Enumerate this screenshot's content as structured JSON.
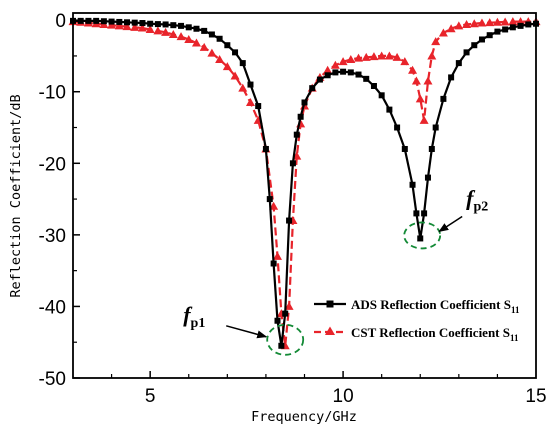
{
  "chart_data": {
    "type": "line",
    "title": "",
    "xlabel": "Frequency/GHz",
    "ylabel": "Reflection Coefficient/dB",
    "xlim": [
      3,
      15
    ],
    "ylim": [
      -50,
      1
    ],
    "xticks": [
      5,
      10,
      15
    ],
    "yticks": [
      0,
      -10,
      -20,
      -30,
      -40,
      -50
    ],
    "grid": false,
    "legend_position": "lower-right",
    "series": [
      {
        "name": "ADS Reflection Coefficient S11",
        "name_main": "ADS Reflection Coefficient S",
        "name_sub": "11",
        "color": "#000000",
        "line_style": "solid",
        "marker": "square",
        "x": [
          3.0,
          3.2,
          3.4,
          3.6,
          3.8,
          4.0,
          4.2,
          4.4,
          4.6,
          4.8,
          5.0,
          5.2,
          5.4,
          5.6,
          5.8,
          6.0,
          6.2,
          6.4,
          6.6,
          6.8,
          7.0,
          7.2,
          7.4,
          7.6,
          7.8,
          8.0,
          8.1,
          8.2,
          8.3,
          8.4,
          8.5,
          8.6,
          8.7,
          8.8,
          8.9,
          9.0,
          9.2,
          9.4,
          9.6,
          9.8,
          10.0,
          10.2,
          10.4,
          10.6,
          10.8,
          11.0,
          11.2,
          11.4,
          11.6,
          11.8,
          11.9,
          12.0,
          12.1,
          12.2,
          12.3,
          12.4,
          12.6,
          12.8,
          13.0,
          13.2,
          13.4,
          13.6,
          13.8,
          14.0,
          14.2,
          14.4,
          14.6,
          14.8,
          15.0
        ],
        "y": [
          -0.1,
          -0.1,
          -0.1,
          -0.1,
          -0.15,
          -0.2,
          -0.25,
          -0.3,
          -0.35,
          -0.4,
          -0.5,
          -0.55,
          -0.6,
          -0.7,
          -0.8,
          -1.0,
          -1.2,
          -1.5,
          -2.0,
          -2.6,
          -3.5,
          -4.5,
          -6.0,
          -9.0,
          -12.0,
          -18.0,
          -25.0,
          -34.0,
          -42.0,
          -45.5,
          -41.0,
          -28.0,
          -20.0,
          -16.0,
          -13.5,
          -11.5,
          -9.5,
          -8.3,
          -7.7,
          -7.3,
          -7.2,
          -7.3,
          -7.6,
          -8.2,
          -9.2,
          -10.5,
          -12.5,
          -15.0,
          -18.0,
          -23.0,
          -27.0,
          -30.5,
          -27.0,
          -22.0,
          -18.0,
          -15.0,
          -11.0,
          -8.0,
          -6.0,
          -4.5,
          -3.5,
          -2.7,
          -2.1,
          -1.6,
          -1.3,
          -1.0,
          -0.8,
          -0.6,
          -0.5
        ]
      },
      {
        "name": "CST Reflection Coefficient S11",
        "name_main": "CST Reflection Coefficient S",
        "name_sub": "11",
        "color": "#e8242b",
        "line_style": "dashed",
        "marker": "triangle",
        "x": [
          3.0,
          3.2,
          3.4,
          3.6,
          3.8,
          4.0,
          4.2,
          4.4,
          4.6,
          4.8,
          5.0,
          5.2,
          5.4,
          5.6,
          5.8,
          6.0,
          6.2,
          6.4,
          6.6,
          6.8,
          7.0,
          7.2,
          7.4,
          7.6,
          7.8,
          8.0,
          8.2,
          8.3,
          8.4,
          8.5,
          8.6,
          8.7,
          8.8,
          8.9,
          9.0,
          9.2,
          9.4,
          9.6,
          9.8,
          10.0,
          10.2,
          10.4,
          10.6,
          10.8,
          11.0,
          11.2,
          11.4,
          11.6,
          11.8,
          11.9,
          12.0,
          12.1,
          12.2,
          12.3,
          12.4,
          12.6,
          12.8,
          13.0,
          13.2,
          13.4,
          13.6,
          13.8,
          14.0,
          14.2,
          14.4,
          14.6,
          14.8,
          15.0
        ],
        "y": [
          -0.2,
          -0.3,
          -0.4,
          -0.5,
          -0.6,
          -0.7,
          -0.8,
          -0.9,
          -1.0,
          -1.1,
          -1.3,
          -1.5,
          -1.7,
          -2.0,
          -2.3,
          -2.7,
          -3.2,
          -3.8,
          -4.6,
          -5.5,
          -6.5,
          -7.8,
          -9.5,
          -11.5,
          -14.0,
          -18.0,
          -26.0,
          -33.0,
          -41.0,
          -45.5,
          -40.0,
          -28.0,
          -19.0,
          -14.5,
          -12.0,
          -9.5,
          -8.0,
          -7.0,
          -6.3,
          -5.8,
          -5.5,
          -5.3,
          -5.2,
          -5.1,
          -5.0,
          -5.0,
          -5.2,
          -5.8,
          -7.0,
          -8.5,
          -11.0,
          -14.0,
          -8.5,
          -5.0,
          -3.0,
          -1.8,
          -1.2,
          -0.8,
          -0.6,
          -0.5,
          -0.4,
          -0.35,
          -0.3,
          -0.25,
          -0.2,
          -0.2,
          -0.2,
          -0.2
        ]
      }
    ],
    "annotations": [
      {
        "label_main": "f",
        "label_sub": "p1",
        "x": 8.5,
        "y": -45.5
      },
      {
        "label_main": "f",
        "label_sub": "p2",
        "x": 12.05,
        "y": -30.5
      }
    ]
  }
}
